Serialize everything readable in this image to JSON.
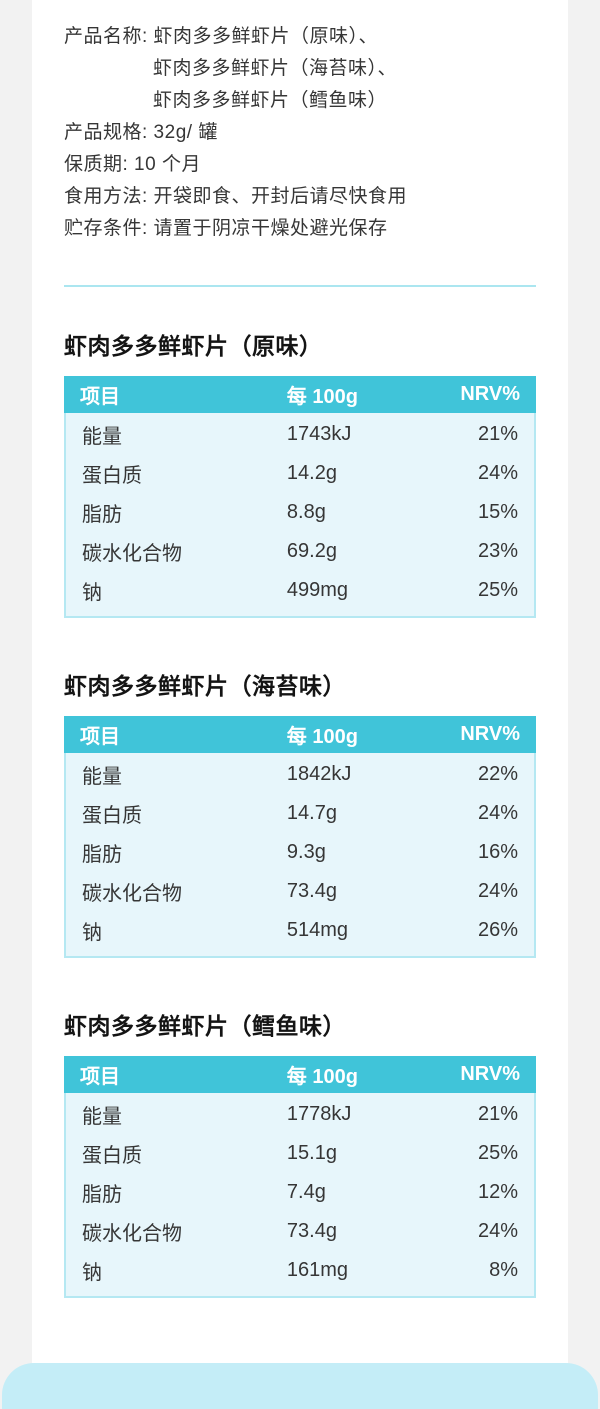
{
  "colors": {
    "page_background": "#f2f2f2",
    "card_background": "#ffffff",
    "table_header": "#40c4d9",
    "table_body": "#e7f6fb",
    "table_border": "#b5e8f2",
    "divider": "#abe6f0",
    "footer_card": "#c4edf7",
    "text": "#363636"
  },
  "info": {
    "lines": [
      "产品名称: 虾肉多多鲜虾片（原味）、",
      "虾肉多多鲜虾片（海苔味）、",
      "虾肉多多鲜虾片（鳕鱼味）",
      "产品规格: 32g/ 罐",
      "保质期: 10 个月",
      "食用方法: 开袋即食、开封后请尽快食用",
      "贮存条件: 请置于阴凉干燥处避光保存"
    ]
  },
  "columns": {
    "item": "项目",
    "per100g": "每 100g",
    "nrv": "NRV%"
  },
  "sections": [
    {
      "title": "虾肉多多鲜虾片（原味）",
      "rows": [
        {
          "item": "能量",
          "per100g": "1743kJ",
          "nrv": "21%"
        },
        {
          "item": "蛋白质",
          "per100g": "14.2g",
          "nrv": "24%"
        },
        {
          "item": "脂肪",
          "per100g": "8.8g",
          "nrv": "15%"
        },
        {
          "item": "碳水化合物",
          "per100g": "69.2g",
          "nrv": "23%"
        },
        {
          "item": "钠",
          "per100g": "499mg",
          "nrv": "25%"
        }
      ]
    },
    {
      "title": "虾肉多多鲜虾片（海苔味）",
      "rows": [
        {
          "item": "能量",
          "per100g": "1842kJ",
          "nrv": "22%"
        },
        {
          "item": "蛋白质",
          "per100g": "14.7g",
          "nrv": "24%"
        },
        {
          "item": "脂肪",
          "per100g": "9.3g",
          "nrv": "16%"
        },
        {
          "item": "碳水化合物",
          "per100g": "73.4g",
          "nrv": "24%"
        },
        {
          "item": "钠",
          "per100g": "514mg",
          "nrv": "26%"
        }
      ]
    },
    {
      "title": "虾肉多多鲜虾片（鳕鱼味）",
      "rows": [
        {
          "item": "能量",
          "per100g": "1778kJ",
          "nrv": "21%"
        },
        {
          "item": "蛋白质",
          "per100g": "15.1g",
          "nrv": "25%"
        },
        {
          "item": "脂肪",
          "per100g": "7.4g",
          "nrv": "12%"
        },
        {
          "item": "碳水化合物",
          "per100g": "73.4g",
          "nrv": "24%"
        },
        {
          "item": "钠",
          "per100g": "161mg",
          "nrv": "8%"
        }
      ]
    }
  ]
}
